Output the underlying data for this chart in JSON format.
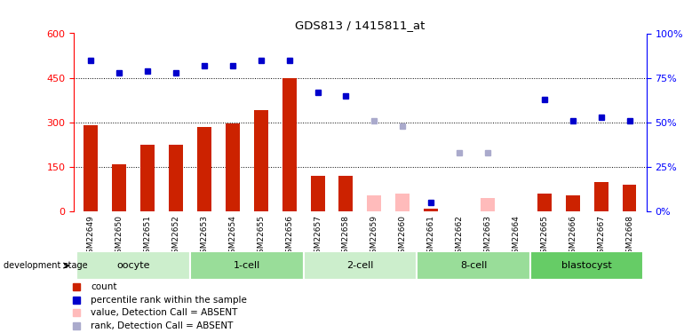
{
  "title": "GDS813 / 1415811_at",
  "samples": [
    "GSM22649",
    "GSM22650",
    "GSM22651",
    "GSM22652",
    "GSM22653",
    "GSM22654",
    "GSM22655",
    "GSM22656",
    "GSM22657",
    "GSM22658",
    "GSM22659",
    "GSM22660",
    "GSM22661",
    "GSM22662",
    "GSM22663",
    "GSM22664",
    "GSM22665",
    "GSM22666",
    "GSM22667",
    "GSM22668"
  ],
  "count_values": [
    290,
    160,
    225,
    225,
    285,
    295,
    340,
    450,
    120,
    120,
    null,
    null,
    10,
    null,
    null,
    null,
    60,
    55,
    100,
    90
  ],
  "count_absent": [
    null,
    null,
    null,
    null,
    null,
    null,
    null,
    null,
    null,
    null,
    55,
    60,
    null,
    null,
    45,
    null,
    null,
    null,
    null,
    null
  ],
  "rank_values": [
    85,
    78,
    79,
    78,
    82,
    82,
    85,
    85,
    67,
    65,
    null,
    null,
    5,
    null,
    null,
    null,
    63,
    51,
    53,
    51
  ],
  "rank_absent": [
    null,
    null,
    null,
    null,
    null,
    null,
    null,
    null,
    null,
    null,
    51,
    48,
    null,
    33,
    33,
    null,
    null,
    null,
    null,
    null
  ],
  "stages": [
    {
      "label": "oocyte",
      "start": 0,
      "end": 3
    },
    {
      "label": "1-cell",
      "start": 4,
      "end": 7
    },
    {
      "label": "2-cell",
      "start": 8,
      "end": 11
    },
    {
      "label": "8-cell",
      "start": 12,
      "end": 15
    },
    {
      "label": "blastocyst",
      "start": 16,
      "end": 19
    }
  ],
  "ylim_left": [
    0,
    600
  ],
  "ylim_right": [
    0,
    100
  ],
  "yticks_left": [
    0,
    150,
    300,
    450,
    600
  ],
  "yticks_right": [
    0,
    25,
    50,
    75,
    100
  ],
  "bar_color": "#cc2200",
  "bar_absent_color": "#ffbbbb",
  "rank_color": "#0000cc",
  "rank_absent_color": "#aaaacc",
  "sample_bg_color": "#cccccc",
  "stage_bg_color": "#88cc88"
}
